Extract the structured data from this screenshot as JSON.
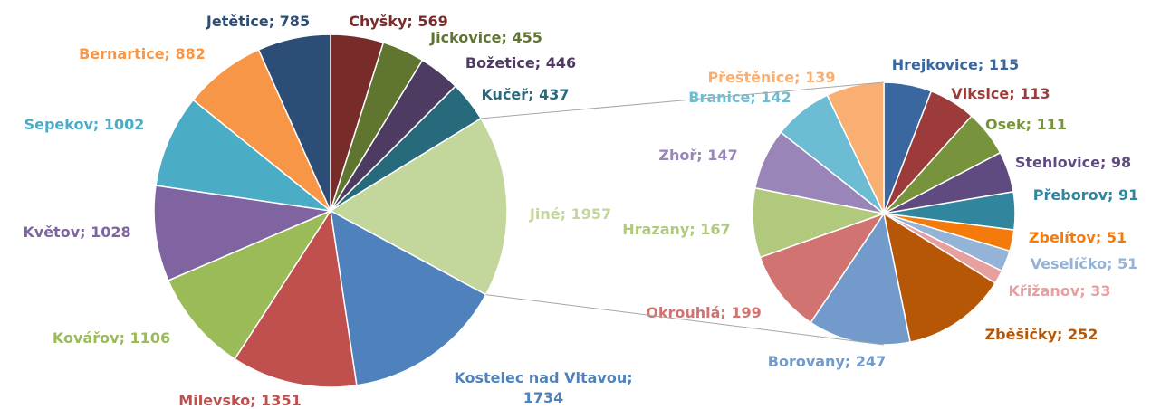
{
  "chart_data": [
    {
      "type": "pie",
      "label_separator": "; ",
      "categories": [
        "Chyšky",
        "Jickovice",
        "Božetice",
        "Kučeř",
        "Jiné",
        "Kostelec nad Vltavou",
        "Milevsko",
        "Kovářov",
        "Květov",
        "Sepekov",
        "Bernartice",
        "Jetětice"
      ],
      "values": [
        569,
        455,
        446,
        437,
        1957,
        1734,
        1351,
        1106,
        1028,
        1002,
        882,
        785
      ],
      "colors": [
        "#772c2a",
        "#5f7530",
        "#4d3b62",
        "#276a7c",
        "#c3d69b",
        "#4f81bd",
        "#c0504d",
        "#9bbb59",
        "#8064a2",
        "#4bacc6",
        "#f79646",
        "#2c4d75"
      ]
    },
    {
      "type": "pie",
      "label_separator": "; ",
      "categories": [
        "Hrejkovice",
        "Vlksice",
        "Osek",
        "Stehlovice",
        "Přeborov",
        "Zbelítov",
        "Veselíčko",
        "Křižanov",
        "Zběšičky",
        "Borovany",
        "Okrouhlá",
        "Hrazany",
        "Zhoř",
        "Branice",
        "Přeštěnice"
      ],
      "values": [
        115,
        113,
        111,
        98,
        91,
        51,
        51,
        33,
        252,
        247,
        199,
        167,
        147,
        142,
        139
      ],
      "colors": [
        "#3a67a0",
        "#9c3b39",
        "#77933c",
        "#5f4b80",
        "#31859c",
        "#f57a0c",
        "#95b3d7",
        "#e6a0a0",
        "#b65708",
        "#729aca",
        "#d07371",
        "#b0c97d",
        "#9a85b8",
        "#6cbdd3",
        "#f9ae72"
      ]
    }
  ]
}
